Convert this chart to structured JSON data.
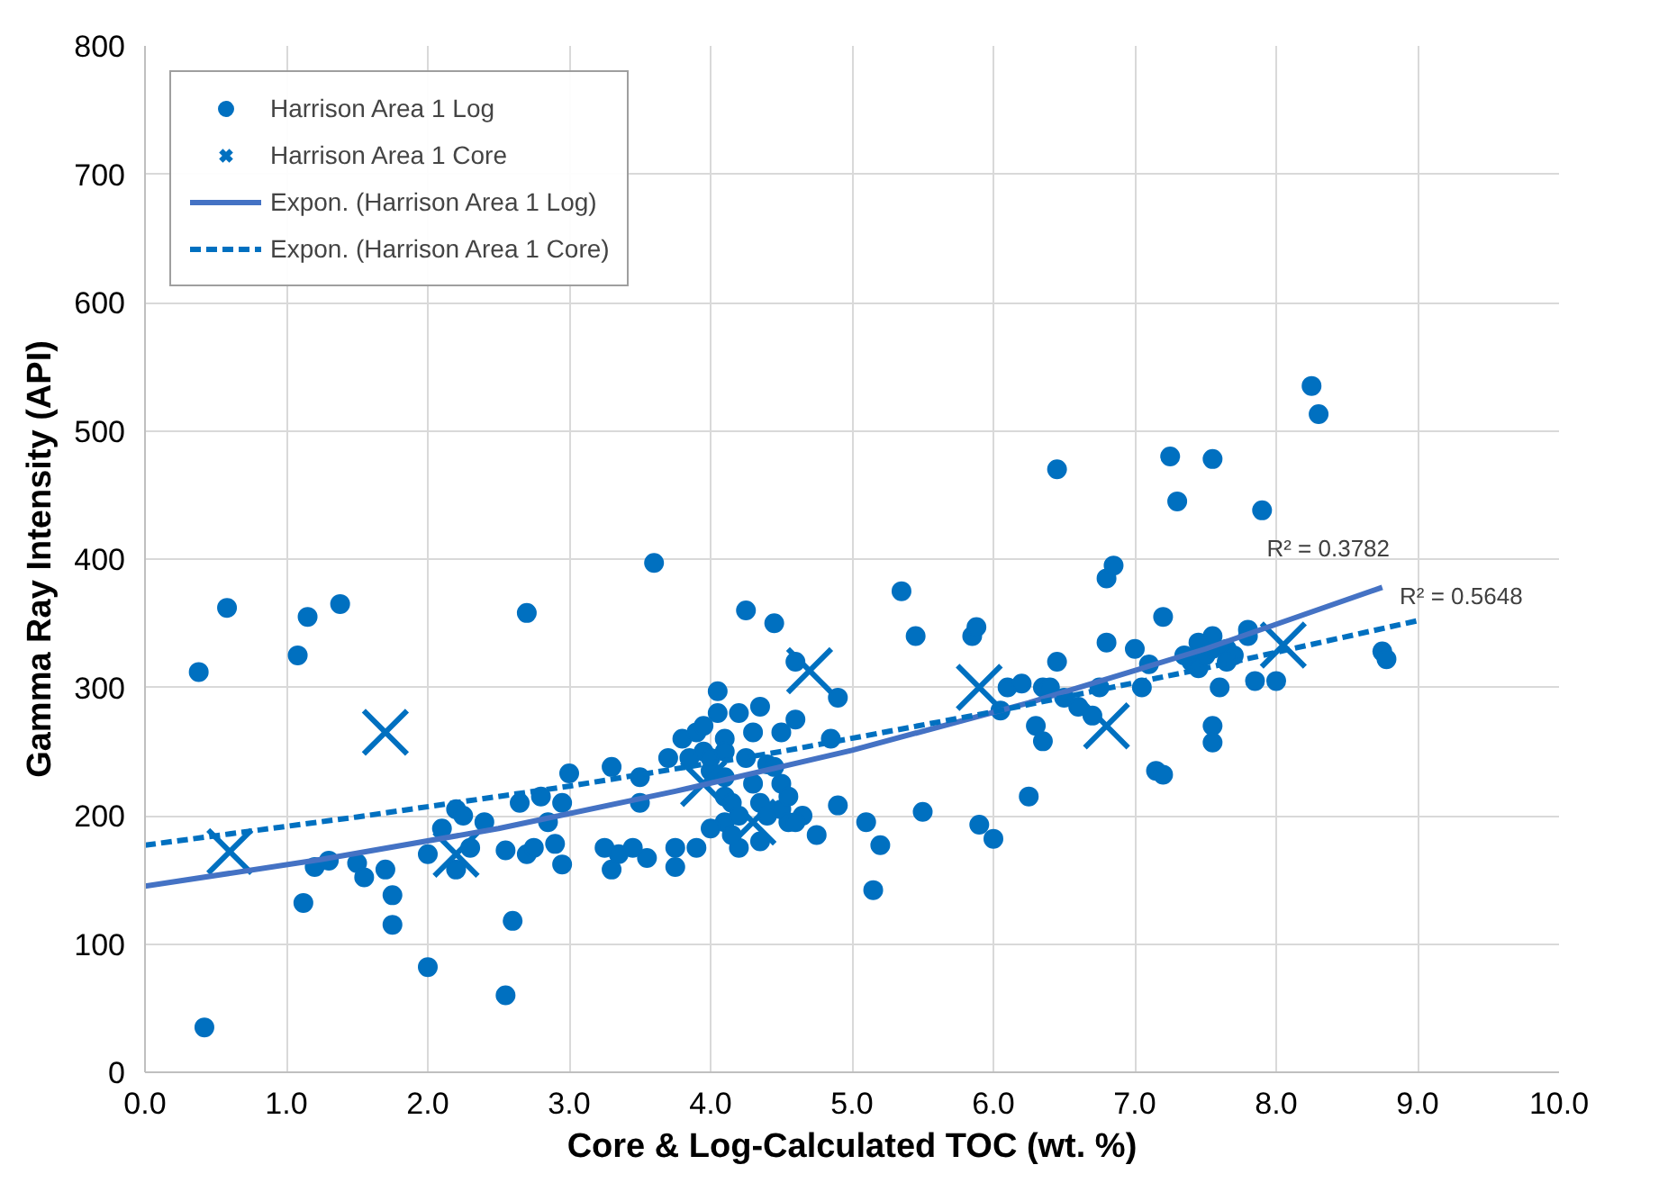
{
  "chart_data": {
    "type": "scatter",
    "xlabel": "Core & Log-Calculated TOC (wt. %)",
    "ylabel": "Gamma Ray Intensity (API)",
    "xlim": [
      0,
      10
    ],
    "ylim": [
      0,
      800
    ],
    "xticks": [
      {
        "value": 0,
        "label": "0.0"
      },
      {
        "value": 1,
        "label": "1.0"
      },
      {
        "value": 2,
        "label": "2.0"
      },
      {
        "value": 3,
        "label": "3.0"
      },
      {
        "value": 4,
        "label": "4.0"
      },
      {
        "value": 5,
        "label": "5.0"
      },
      {
        "value": 6,
        "label": "6.0"
      },
      {
        "value": 7,
        "label": "7.0"
      },
      {
        "value": 8,
        "label": "8.0"
      },
      {
        "value": 9,
        "label": "9.0"
      },
      {
        "value": 10,
        "label": "10.0"
      }
    ],
    "yticks": [
      0,
      100,
      200,
      300,
      400,
      500,
      600,
      700,
      800
    ],
    "grid": true,
    "legend": "top left",
    "series": [
      {
        "name": "Harrison Area 1 Log",
        "marker": "circle",
        "color": "#0070c0",
        "x": [
          0.38,
          0.58,
          0.42,
          1.08,
          1.12,
          1.15,
          1.38,
          1.2,
          1.3,
          1.5,
          1.55,
          1.7,
          1.75,
          1.75,
          2.0,
          2.0,
          2.1,
          2.2,
          2.25,
          2.2,
          2.3,
          2.4,
          2.55,
          2.6,
          2.55,
          2.65,
          2.7,
          2.7,
          2.75,
          2.8,
          2.85,
          2.9,
          2.95,
          2.95,
          3.0,
          3.25,
          3.3,
          3.3,
          3.35,
          3.45,
          3.5,
          3.5,
          3.55,
          3.6,
          3.7,
          3.75,
          3.75,
          3.8,
          3.85,
          3.9,
          3.9,
          3.95,
          3.95,
          4.0,
          4.0,
          4.05,
          4.05,
          4.1,
          4.1,
          4.1,
          4.1,
          4.1,
          4.15,
          4.15,
          4.2,
          4.2,
          4.25,
          4.25,
          4.3,
          4.3,
          4.35,
          4.35,
          4.35,
          4.4,
          4.4,
          4.45,
          4.5,
          4.5,
          4.5,
          4.55,
          4.55,
          4.6,
          4.6,
          4.65,
          4.75,
          4.85,
          4.9,
          4.9,
          5.1,
          5.15,
          5.2,
          5.35,
          5.45,
          5.5,
          5.85,
          5.88,
          5.9,
          6.0,
          6.05,
          6.1,
          6.25,
          6.3,
          6.35,
          6.35,
          6.4,
          6.45,
          6.45,
          6.6,
          6.7,
          6.75,
          6.8,
          6.8,
          6.85,
          7.0,
          7.05,
          7.1,
          7.15,
          7.2,
          7.2,
          7.25,
          7.3,
          7.4,
          7.45,
          7.5,
          7.55,
          7.55,
          7.55,
          7.6,
          7.55,
          7.55,
          7.65,
          7.7,
          7.8,
          7.85,
          7.9,
          8.0,
          8.25,
          8.3,
          8.75,
          8.78,
          7.35,
          7.45,
          7.65,
          6.2,
          6.5,
          7.8,
          4.6,
          4.0,
          4.45,
          4.2
        ],
        "values": [
          312,
          362,
          35,
          325,
          132,
          355,
          365,
          160,
          165,
          163,
          152,
          158,
          138,
          115,
          170,
          82,
          190,
          205,
          200,
          158,
          175,
          195,
          173,
          118,
          60,
          210,
          170,
          358,
          175,
          215,
          195,
          178,
          162,
          210,
          233,
          175,
          158,
          238,
          170,
          175,
          230,
          210,
          167,
          397,
          245,
          175,
          160,
          260,
          245,
          265,
          175,
          270,
          250,
          245,
          235,
          297,
          280,
          260,
          250,
          230,
          215,
          195,
          210,
          185,
          175,
          200,
          245,
          360,
          225,
          265,
          285,
          210,
          180,
          240,
          200,
          350,
          265,
          225,
          205,
          195,
          215,
          320,
          275,
          200,
          185,
          260,
          292,
          208,
          195,
          142,
          177,
          375,
          340,
          203,
          340,
          347,
          193,
          182,
          282,
          300,
          215,
          270,
          300,
          258,
          300,
          470,
          320,
          285,
          278,
          300,
          335,
          385,
          395,
          330,
          300,
          318,
          235,
          355,
          232,
          480,
          445,
          320,
          315,
          325,
          478,
          330,
          340,
          300,
          270,
          257,
          330,
          325,
          345,
          305,
          438,
          305,
          535,
          513,
          328,
          322,
          325,
          335,
          320,
          303,
          292,
          340,
          195,
          190,
          238,
          280
        ]
      },
      {
        "name": "Harrison Area 1 Core",
        "marker": "cross",
        "color": "#0070c0",
        "x": [
          0.6,
          1.7,
          2.2,
          3.95,
          4.3,
          4.7,
          5.9,
          6.8,
          8.05
        ],
        "values": [
          172,
          265,
          170,
          225,
          195,
          313,
          300,
          270,
          333
        ]
      },
      {
        "name": "Expon. (Harrison Area 1 Log)",
        "type": "line",
        "line_style": "solid",
        "color": "#4472c4",
        "x": [
          0,
          1.25,
          2.5,
          3.75,
          5,
          6.25,
          7.5,
          8.75
        ],
        "values": [
          145,
          166,
          190,
          219,
          251,
          288,
          330,
          378
        ]
      },
      {
        "name": "Expon. (Harrison Area 1 Core)",
        "type": "line",
        "line_style": "dashed",
        "color": "#0070c0",
        "x": [
          0,
          1.5,
          3,
          4.5,
          6,
          7.5,
          9
        ],
        "values": [
          177,
          199,
          223,
          250,
          281,
          315,
          352
        ]
      }
    ],
    "annotations": [
      "R² = 0.3782",
      "R² = 0.5648"
    ]
  }
}
